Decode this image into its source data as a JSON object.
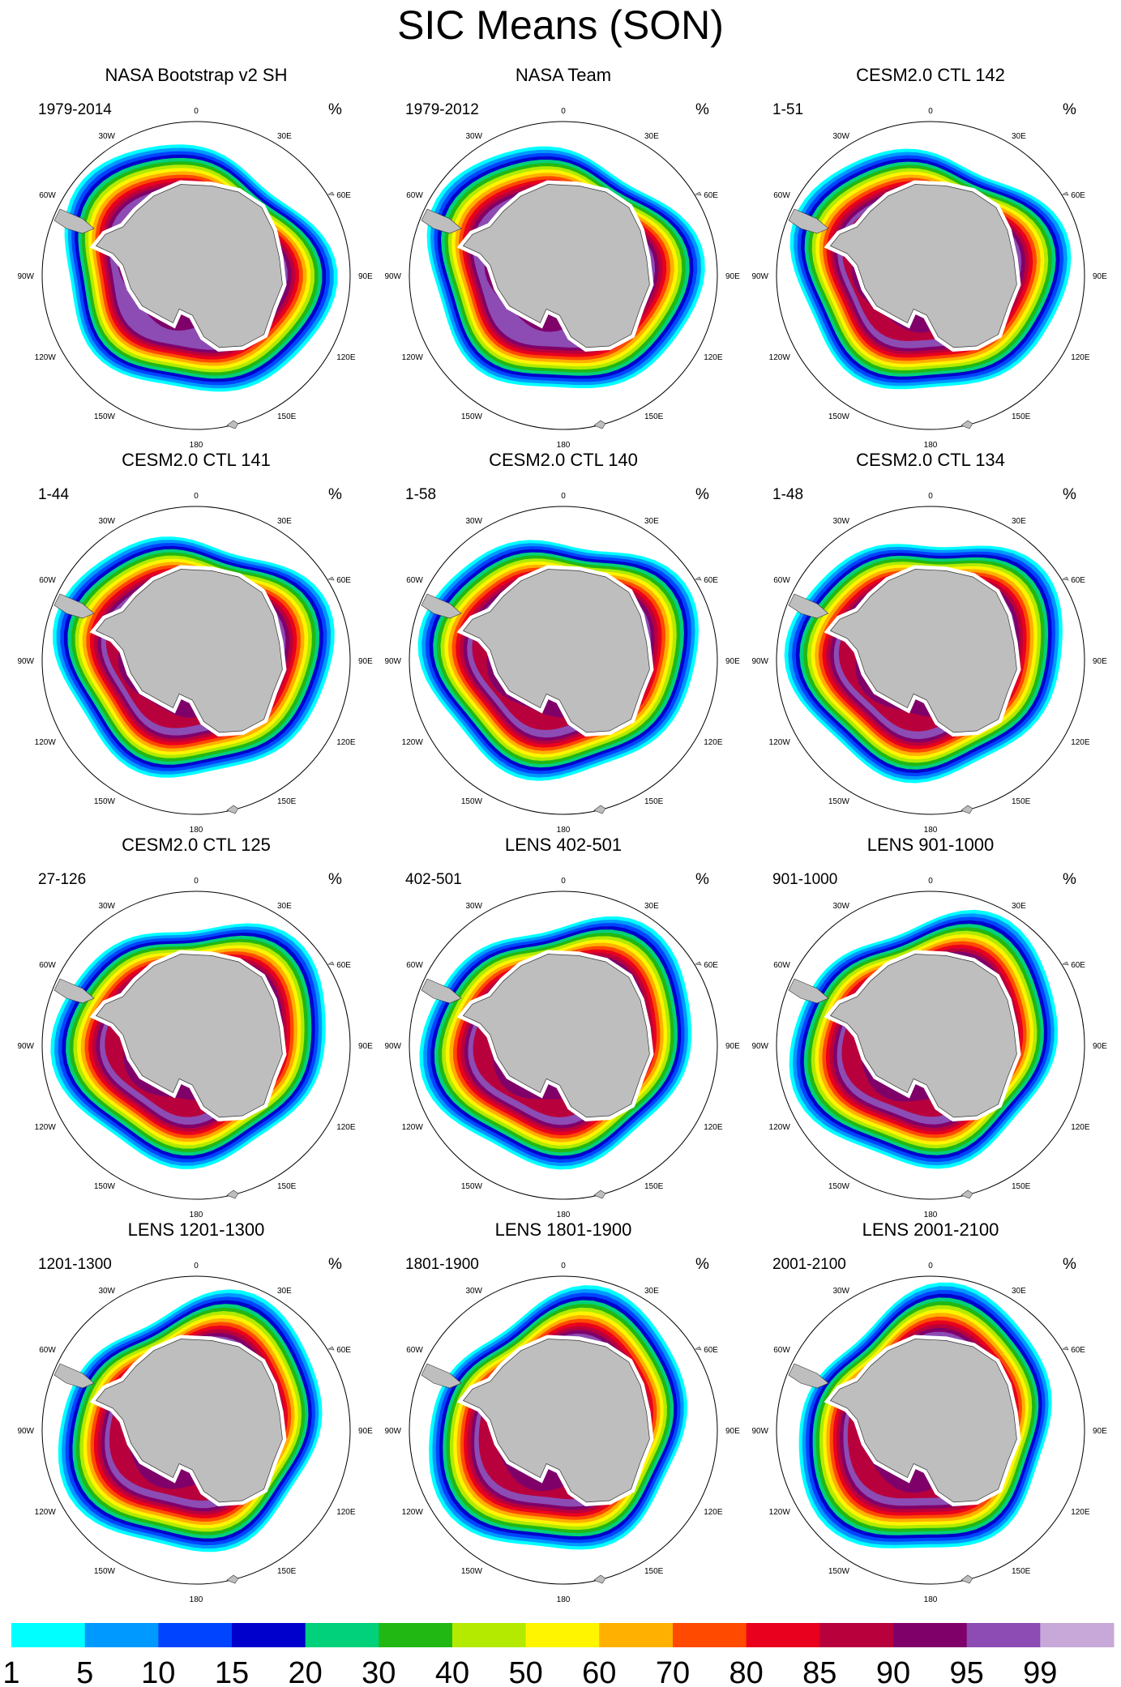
{
  "title": "SIC Means (SON)",
  "unit": "%",
  "lon_labels": [
    "0",
    "30E",
    "60E",
    "90E",
    "120E",
    "150E",
    "180",
    "150W",
    "120W",
    "90W",
    "60W",
    "30W"
  ],
  "colors": {
    "land": "#bebebe",
    "levels": [
      "#00ffff",
      "#0099ff",
      "#0044ff",
      "#0000cc",
      "#00d17a",
      "#22b814",
      "#b3ea00",
      "#fff500",
      "#ffb000",
      "#ff4a00",
      "#e8001e",
      "#b8003c",
      "#80006a",
      "#8c4cb4",
      "#c8a8d8"
    ]
  },
  "chart_data": {
    "type": "contour map panels",
    "title": "SIC Means (SON)",
    "panels": [
      {
        "title": "NASA Bootstrap v2 SH",
        "years": "1979-2014",
        "unit": "%"
      },
      {
        "title": "NASA Team",
        "years": "1979-2012",
        "unit": "%"
      },
      {
        "title": "CESM2.0 CTL 142",
        "years": "1-51",
        "unit": "%"
      },
      {
        "title": "CESM2.0 CTL 141",
        "years": "1-44",
        "unit": "%"
      },
      {
        "title": "CESM2.0 CTL 140",
        "years": "1-58",
        "unit": "%"
      },
      {
        "title": "CESM2.0 CTL 134",
        "years": "1-48",
        "unit": "%"
      },
      {
        "title": "CESM2.0 CTL 125",
        "years": "27-126",
        "unit": "%"
      },
      {
        "title": "LENS 402-501",
        "years": "402-501",
        "unit": "%"
      },
      {
        "title": "LENS 901-1000",
        "years": "901-1000",
        "unit": "%"
      },
      {
        "title": "LENS 1201-1300",
        "years": "1201-1300",
        "unit": "%"
      },
      {
        "title": "LENS 1801-1900",
        "years": "1801-1900",
        "unit": "%"
      },
      {
        "title": "LENS 2001-2100",
        "years": "2001-2100",
        "unit": "%"
      }
    ],
    "colorbar": {
      "levels": [
        "1",
        "5",
        "10",
        "15",
        "20",
        "30",
        "40",
        "50",
        "60",
        "70",
        "80",
        "85",
        "90",
        "95",
        "99"
      ]
    }
  }
}
